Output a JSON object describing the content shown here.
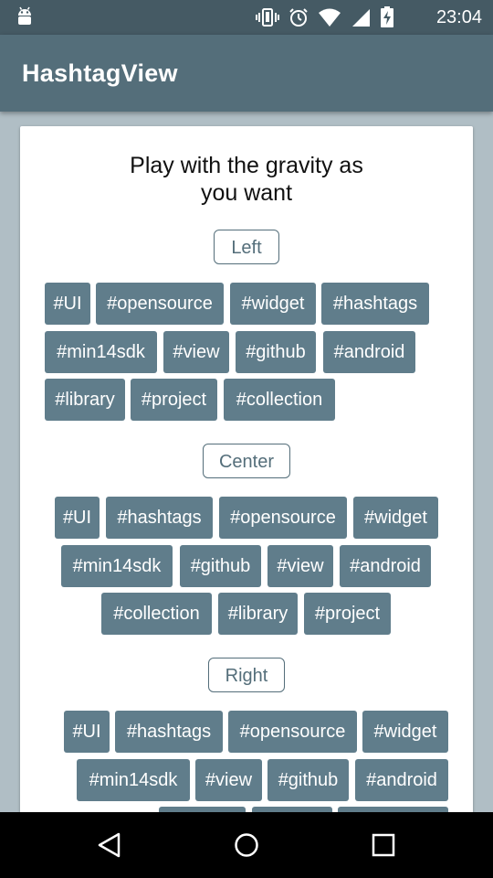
{
  "status_bar": {
    "time": "23:04",
    "icons": [
      "android-debug-icon",
      "vibrate-icon",
      "alarm-icon",
      "wifi-icon",
      "signal-icon",
      "battery-charging-icon"
    ]
  },
  "app_bar": {
    "title": "HashtagView"
  },
  "card": {
    "headline_line1": "Play with the gravity as",
    "headline_line2": "you want",
    "sections": [
      {
        "button": "Left",
        "rows": [
          [
            "#UI",
            "#opensource",
            "#widget",
            "#hashtags"
          ],
          [
            "#min14sdk",
            "#view",
            "#github",
            "#android"
          ],
          [
            "#library",
            "#project",
            "#collection"
          ]
        ]
      },
      {
        "button": "Center",
        "rows": [
          [
            "#UI",
            "#hashtags",
            "#opensource",
            "#widget"
          ],
          [
            "#min14sdk",
            "#github",
            "#view",
            "#android"
          ],
          [
            "#collection",
            "#library",
            "#project"
          ]
        ]
      },
      {
        "button": "Right",
        "rows": [
          [
            "#UI",
            "#hashtags",
            "#opensource",
            "#widget"
          ],
          [
            "#min14sdk",
            "#view",
            "#github",
            "#android"
          ]
        ]
      }
    ]
  },
  "nav_bar": {
    "icons": [
      "back-icon",
      "home-icon",
      "recents-icon"
    ]
  },
  "colors": {
    "status_bar": "#455a64",
    "app_bar": "#546e7a",
    "tag_background": "#607d8b",
    "tag_text": "#ffffff",
    "page_background": "#b0bec5",
    "button_border": "#546e7a"
  }
}
